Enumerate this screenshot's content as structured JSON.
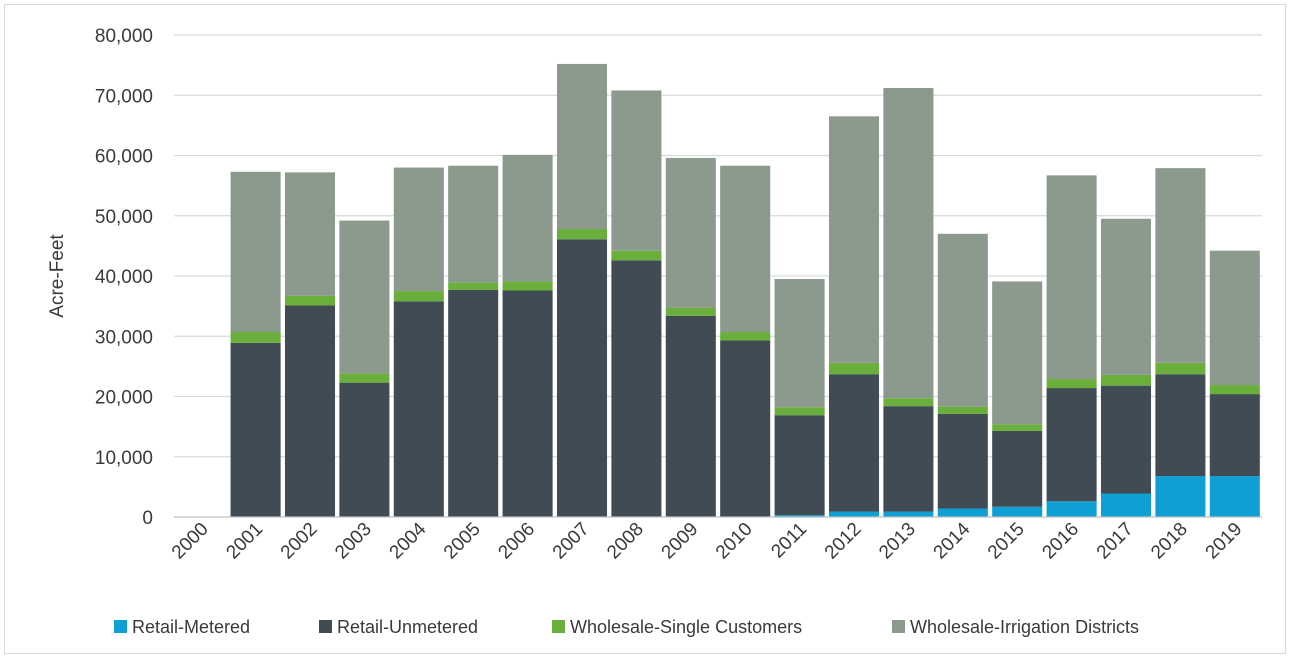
{
  "chart_data": {
    "type": "bar",
    "stacked": true,
    "title": "",
    "xlabel": "",
    "ylabel": "Acre-Feet",
    "ylim": [
      0,
      80000
    ],
    "yticks": [
      "0",
      "10,000",
      "20,000",
      "30,000",
      "40,000",
      "50,000",
      "60,000",
      "70,000",
      "80,000"
    ],
    "ytick_values": [
      0,
      10000,
      20000,
      30000,
      40000,
      50000,
      60000,
      70000,
      80000
    ],
    "grid": "horizontal",
    "legend_position": "bottom",
    "categories": [
      "2000",
      "2001",
      "2002",
      "2003",
      "2004",
      "2005",
      "2006",
      "2007",
      "2008",
      "2009",
      "2010",
      "2011",
      "2012",
      "2013",
      "2014",
      "2015",
      "2016",
      "2017",
      "2018",
      "2019"
    ],
    "series": [
      {
        "name": "Retail-Metered",
        "color": "#0ea0d2",
        "values": [
          0,
          0,
          0,
          0,
          0,
          0,
          0,
          0,
          0,
          0,
          0,
          300,
          900,
          900,
          1400,
          1700,
          2600,
          3900,
          6800,
          6800
        ]
      },
      {
        "name": "Retail-Unmetered",
        "color": "#404b54",
        "values": [
          0,
          28900,
          35100,
          22300,
          35800,
          37700,
          37600,
          46100,
          42600,
          33400,
          29300,
          16600,
          22800,
          17500,
          15700,
          12600,
          18800,
          17900,
          16900,
          13600
        ]
      },
      {
        "name": "Wholesale-Single Customers",
        "color": "#6aaf3c",
        "values": [
          0,
          1800,
          1600,
          1500,
          1700,
          1200,
          1500,
          1700,
          1600,
          1300,
          1400,
          1300,
          1900,
          1300,
          1200,
          1100,
          1500,
          1800,
          1900,
          1500
        ]
      },
      {
        "name": "Wholesale-Irrigation Districts",
        "color": "#8c9a8e",
        "values": [
          0,
          26600,
          20500,
          25400,
          20500,
          19400,
          21000,
          27400,
          26600,
          24900,
          27600,
          21300,
          40900,
          51500,
          28700,
          23700,
          33800,
          25900,
          32300,
          22300
        ]
      }
    ]
  }
}
